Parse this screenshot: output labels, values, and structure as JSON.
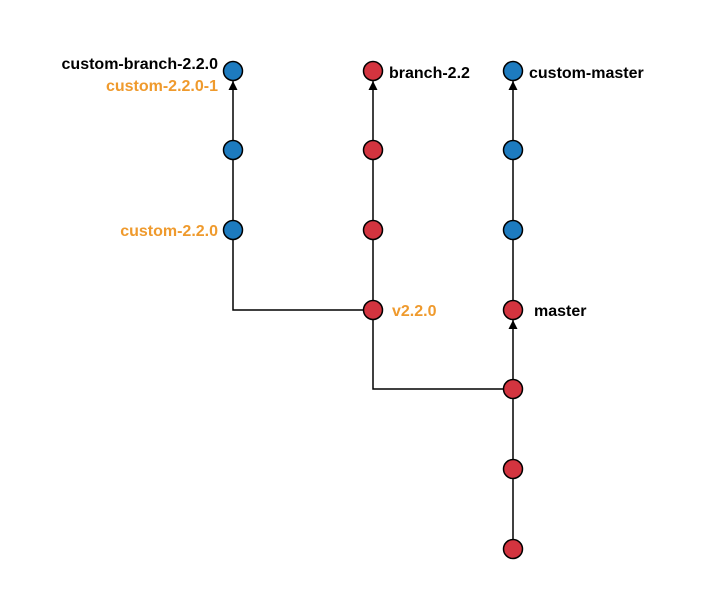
{
  "colors": {
    "custom_commit": "#1d7bbf",
    "upstream_commit": "#d3343f",
    "tag_text": "#ef9a2d",
    "branch_text": "#000000",
    "line": "#000000"
  },
  "labels": {
    "custom_branch_220": "custom-branch-2.2.0",
    "custom_tag_220_1": "custom-2.2.0-1",
    "custom_tag_220": "custom-2.2.0",
    "branch_22": "branch-2.2",
    "tag_v220": "v2.2.0",
    "custom_master": "custom-master",
    "master": "master"
  },
  "commits": [
    {
      "id": "m1",
      "kind": "upstream"
    },
    {
      "id": "m2",
      "kind": "upstream"
    },
    {
      "id": "m3",
      "kind": "upstream"
    },
    {
      "id": "m4",
      "kind": "upstream",
      "branch": "master"
    },
    {
      "id": "cm1",
      "kind": "custom"
    },
    {
      "id": "cm2",
      "kind": "custom"
    },
    {
      "id": "cm3",
      "kind": "custom",
      "branch": "custom-master"
    },
    {
      "id": "b1",
      "kind": "upstream",
      "tag": "v2.2.0"
    },
    {
      "id": "b2",
      "kind": "upstream"
    },
    {
      "id": "b3",
      "kind": "upstream"
    },
    {
      "id": "b4",
      "kind": "upstream",
      "branch": "branch-2.2"
    },
    {
      "id": "c1",
      "kind": "custom",
      "tag": "custom-2.2.0"
    },
    {
      "id": "c2",
      "kind": "custom"
    },
    {
      "id": "c3",
      "kind": "custom",
      "branch": "custom-branch-2.2.0",
      "tag": "custom-2.2.0-1"
    }
  ]
}
